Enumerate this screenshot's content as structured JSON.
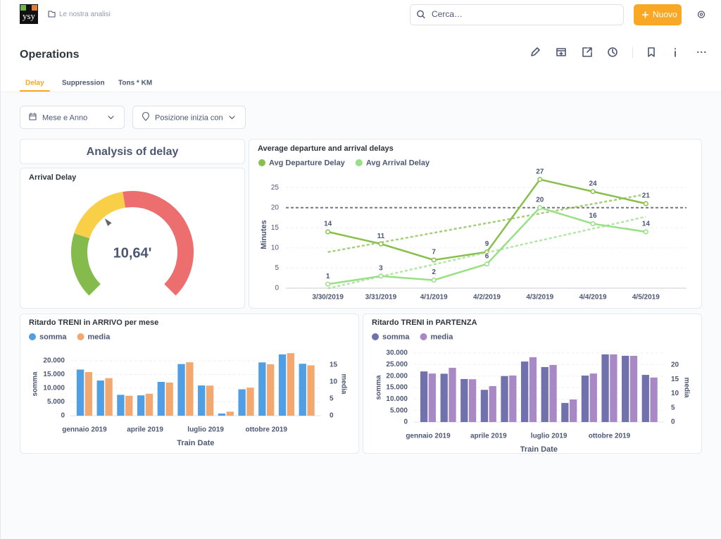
{
  "header": {
    "logo": "ysy",
    "breadcrumb": "Le nostra analisi",
    "search_placeholder": "Cerca…",
    "new_button": "Nuovo"
  },
  "page": {
    "title": "Operations",
    "tabs": [
      "Delay",
      "Suppression",
      "Tons * KM"
    ],
    "active_tab": 0
  },
  "filters": [
    "Mese e Anno",
    "Posizione inizia con"
  ],
  "section_title": "Analysis of delay",
  "chart_data": [
    {
      "type": "gauge",
      "title": "Arrival Delay",
      "value": 10.64,
      "value_label": "10,64'",
      "range": [
        0,
        30
      ],
      "segments": [
        {
          "to": 7,
          "color": "#84bb4c"
        },
        {
          "to": 14,
          "color": "#f9cf48"
        },
        {
          "to": 30,
          "color": "#ed6e6e"
        }
      ]
    },
    {
      "type": "line",
      "title": "Average departure and arrival delays",
      "x": [
        "3/30/2019",
        "3/31/2019",
        "4/1/2019",
        "4/2/2019",
        "4/3/2019",
        "4/4/2019",
        "4/5/2019"
      ],
      "ylabel": "Minutes",
      "ylim": [
        0,
        28
      ],
      "yticks": [
        0,
        5,
        10,
        15,
        20,
        25
      ],
      "grid": true,
      "goal": 20,
      "trend": true,
      "series": [
        {
          "name": "Avg Departure Delay",
          "color": "#88bf4d",
          "values": [
            14,
            11,
            7,
            9,
            27,
            24,
            21
          ]
        },
        {
          "name": "Avg Arrival Delay",
          "color": "#98e085",
          "values": [
            1,
            3,
            2,
            6,
            20,
            16,
            14
          ]
        }
      ]
    },
    {
      "type": "bar",
      "title": "Ritardo TRENI in ARRIVO per mese",
      "categories": [
        "gennaio 2019",
        null,
        null,
        "aprile 2019",
        null,
        null,
        "luglio 2019",
        null,
        null,
        "ottobre 2019",
        null,
        null
      ],
      "xlabel": "Train Date",
      "ylabel": "somma",
      "y2label": "media",
      "grid": true,
      "ylim": [
        0,
        24000
      ],
      "yticks": [
        0,
        {
          "value": 5000,
          "label": "5.000"
        },
        {
          "value": 10000,
          "label": "10.000"
        },
        {
          "value": 15000,
          "label": "15.000"
        },
        {
          "value": 20000,
          "label": "20.000"
        }
      ],
      "y2lim": [
        0,
        19.5
      ],
      "y2ticks": [
        0,
        5,
        10,
        15
      ],
      "series": [
        {
          "name": "somma",
          "color": "#509ee3",
          "values": [
            16800,
            12800,
            7600,
            7400,
            12300,
            18800,
            11000,
            800,
            9600,
            19400,
            22300,
            18900
          ]
        },
        {
          "name": "media",
          "color": "#f2a86f",
          "axis": "y2",
          "values": [
            12.9,
            11.1,
            5.9,
            6.5,
            9.8,
            15.8,
            8.9,
            1.2,
            8.3,
            15.2,
            18.5,
            14.9
          ]
        }
      ]
    },
    {
      "type": "bar",
      "title": "Ritardo TRENI in PARTENZA",
      "categories": [
        "gennaio 2019",
        null,
        null,
        "aprile 2019",
        null,
        null,
        "luglio 2019",
        null,
        null,
        "ottobre 2019",
        null,
        null
      ],
      "xlabel": "Train Date",
      "ylabel": "somma",
      "y2label": "media",
      "grid": true,
      "ylim": [
        0,
        32000
      ],
      "yticks": [
        0,
        {
          "value": 5000,
          "label": "5.000"
        },
        {
          "value": 10000,
          "label": "10.000"
        },
        {
          "value": 15000,
          "label": "15.000"
        },
        {
          "value": 20000,
          "label": "20.000"
        },
        {
          "value": 25000,
          "label": "25.000"
        },
        {
          "value": 30000,
          "label": "30.000"
        }
      ],
      "y2lim": [
        0,
        25.8
      ],
      "y2ticks": [
        0,
        5,
        10,
        15,
        20
      ],
      "series": [
        {
          "name": "somma",
          "color": "#7172ad",
          "values": [
            22000,
            21000,
            18700,
            14000,
            20000,
            26300,
            23900,
            8300,
            20200,
            29400,
            28800,
            20500
          ]
        },
        {
          "name": "media",
          "color": "#a989c5",
          "axis": "y2",
          "values": [
            17,
            19,
            15,
            12.6,
            16.3,
            22.7,
            20,
            7.9,
            17,
            23.7,
            23.2,
            15.6
          ]
        }
      ]
    }
  ]
}
